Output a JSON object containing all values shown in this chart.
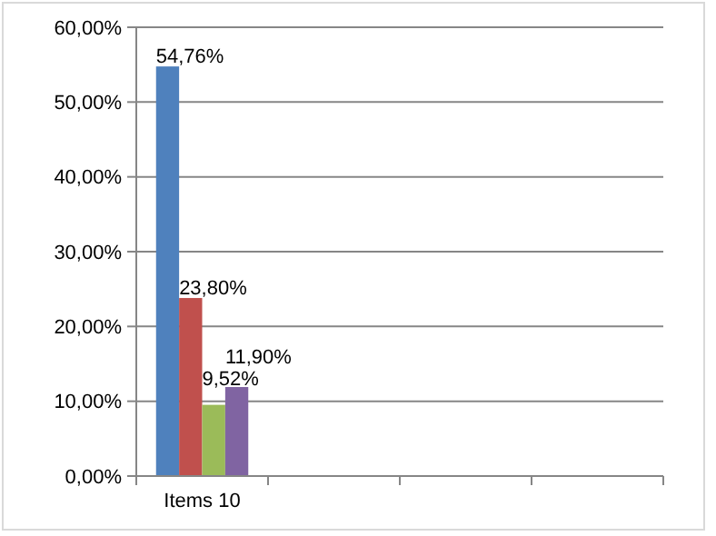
{
  "chart_data": {
    "type": "bar",
    "categories": [
      "Items 10",
      null,
      null,
      null
    ],
    "series": [
      {
        "color": "#4f81bd",
        "values": [
          54.76,
          null,
          null,
          null
        ],
        "value_labels": [
          "54,76%",
          null,
          null,
          null
        ]
      },
      {
        "color": "#c0504d",
        "values": [
          23.8,
          null,
          null,
          null
        ],
        "value_labels": [
          "23,80%",
          null,
          null,
          null
        ]
      },
      {
        "color": "#9bbb59",
        "values": [
          9.52,
          null,
          null,
          null
        ],
        "value_labels": [
          "9,52%",
          null,
          null,
          null
        ]
      },
      {
        "color": "#8064a2",
        "values": [
          11.9,
          null,
          null,
          null
        ],
        "value_labels": [
          "11,90%",
          null,
          null,
          null
        ]
      }
    ],
    "ylim": [
      0,
      60
    ],
    "yticks": [
      {
        "value": 0,
        "label": "0,00%"
      },
      {
        "value": 10,
        "label": "10,00%"
      },
      {
        "value": 20,
        "label": "20,00%"
      },
      {
        "value": 30,
        "label": "30,00%"
      },
      {
        "value": 40,
        "label": "40,00%"
      },
      {
        "value": 50,
        "label": "50,00%"
      },
      {
        "value": 60,
        "label": "60,00%"
      }
    ],
    "grid": "y"
  }
}
